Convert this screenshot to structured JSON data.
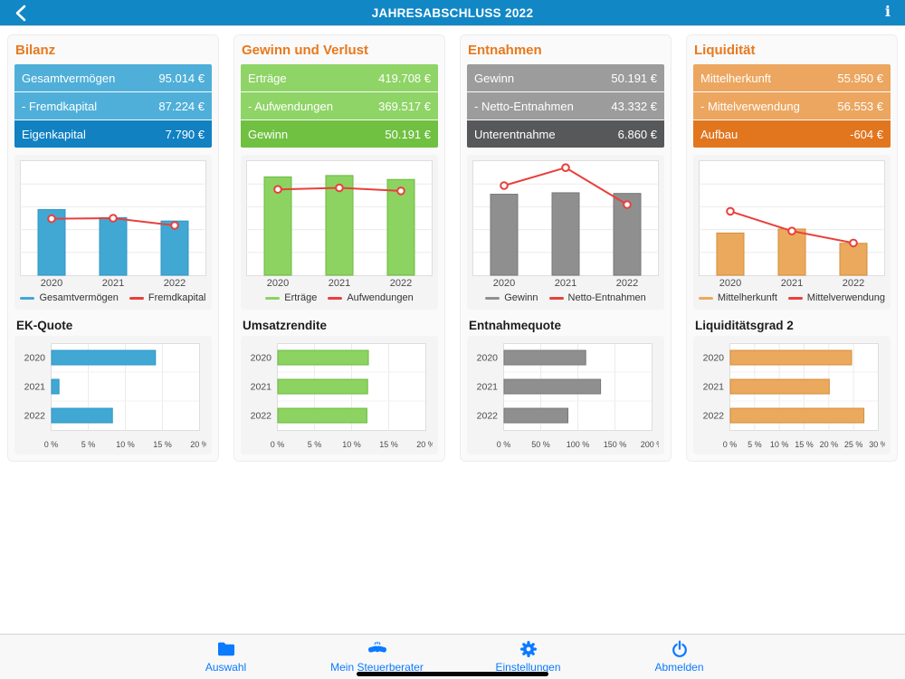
{
  "nav": {
    "title": "JAHRESABSCHLUSS 2022",
    "info_glyph": "i"
  },
  "theme": {
    "navbar_blue": "#1187c5",
    "section_title_orange": "#e8791d",
    "tab_blue": "#0a7aff",
    "red_line": "#e8403c"
  },
  "columns": [
    {
      "title": "Bilanz",
      "rows": [
        {
          "label": "Gesamtvermögen",
          "value": "95.014 €",
          "tone": "light"
        },
        {
          "label": "- Fremdkapital",
          "value": "87.224 €",
          "tone": "light"
        },
        {
          "label": "Eigenkapital",
          "value": "7.790 €",
          "tone": "dark"
        }
      ],
      "colors": {
        "row_light": "#4fafd9",
        "row_dark": "#1181c2",
        "bar": "#41a8d4",
        "bar_border": "#2e96c3",
        "line": "#e8403c"
      },
      "combo_chart": {
        "type": "bar+line",
        "categories": [
          "2020",
          "2021",
          "2022"
        ],
        "series": [
          {
            "name": "Gesamtvermögen",
            "type": "bar",
            "values": [
              115000,
              101000,
              95014
            ]
          },
          {
            "name": "Fremdkapital",
            "type": "line",
            "values": [
              99000,
              100000,
              87224
            ]
          }
        ],
        "ylim": [
          0,
          200000
        ],
        "grid": true,
        "legend_position": "bottom"
      },
      "ratio_chart": {
        "type": "bar",
        "title": "EK-Quote",
        "categories": [
          "2020",
          "2021",
          "2022"
        ],
        "values": [
          14,
          1,
          8.2
        ],
        "xlim": [
          0,
          20
        ],
        "ticks": [
          {
            "value": 0,
            "label": "0 %"
          },
          {
            "value": 5,
            "label": "5 %"
          },
          {
            "value": 10,
            "label": "10 %"
          },
          {
            "value": 15,
            "label": "15 %"
          },
          {
            "value": 20,
            "label": "20 %"
          }
        ]
      }
    },
    {
      "title": "Gewinn und Verlust",
      "rows": [
        {
          "label": "Erträge",
          "value": "419.708 €",
          "tone": "light"
        },
        {
          "label": "- Aufwendungen",
          "value": "369.517 €",
          "tone": "light"
        },
        {
          "label": "Gewinn",
          "value": "50.191 €",
          "tone": "dark"
        }
      ],
      "colors": {
        "row_light": "#8fd466",
        "row_dark": "#70c041",
        "bar": "#8cd361",
        "bar_border": "#6cba40",
        "line": "#e8403c"
      },
      "combo_chart": {
        "type": "bar+line",
        "categories": [
          "2020",
          "2021",
          "2022"
        ],
        "series": [
          {
            "name": "Erträge",
            "type": "bar",
            "values": [
              431000,
              437000,
              419708
            ]
          },
          {
            "name": "Aufwendungen",
            "type": "line",
            "values": [
              376000,
              383000,
              369517
            ]
          }
        ],
        "ylim": [
          0,
          500000
        ],
        "grid": true,
        "legend_position": "bottom"
      },
      "ratio_chart": {
        "type": "bar",
        "title": "Umsatzrendite",
        "categories": [
          "2020",
          "2021",
          "2022"
        ],
        "values": [
          12.2,
          12.1,
          12.0
        ],
        "xlim": [
          0,
          20
        ],
        "ticks": [
          {
            "value": 0,
            "label": "0 %"
          },
          {
            "value": 5,
            "label": "5 %"
          },
          {
            "value": 10,
            "label": "10 %"
          },
          {
            "value": 15,
            "label": "15 %"
          },
          {
            "value": 20,
            "label": "20 %"
          }
        ]
      }
    },
    {
      "title": "Entnahmen",
      "rows": [
        {
          "label": "Gewinn",
          "value": "50.191 €",
          "tone": "light"
        },
        {
          "label": "- Netto-Entnahmen",
          "value": "43.332 €",
          "tone": "light"
        },
        {
          "label": "Unterentnahme",
          "value": "6.860 €",
          "tone": "dark"
        }
      ],
      "colors": {
        "row_light": "#9c9c9c",
        "row_dark": "#57585a",
        "bar": "#8f8f8f",
        "bar_border": "#787878",
        "line": "#e8403c"
      },
      "combo_chart": {
        "type": "bar+line",
        "categories": [
          "2020",
          "2021",
          "2022"
        ],
        "series": [
          {
            "name": "Gewinn",
            "type": "bar",
            "values": [
              49700,
              50600,
              50191
            ]
          },
          {
            "name": "Netto-Entnahmen",
            "type": "line",
            "values": [
              55000,
              66000,
              43332
            ]
          }
        ],
        "ylim": [
          0,
          70000
        ],
        "grid": true,
        "legend_position": "bottom"
      },
      "ratio_chart": {
        "type": "bar",
        "title": "Entnahmequote",
        "categories": [
          "2020",
          "2021",
          "2022"
        ],
        "values": [
          110,
          130,
          86
        ],
        "xlim": [
          0,
          200
        ],
        "ticks": [
          {
            "value": 0,
            "label": "0 %"
          },
          {
            "value": 50,
            "label": "50 %"
          },
          {
            "value": 100,
            "label": "100 %"
          },
          {
            "value": 150,
            "label": "150 %"
          },
          {
            "value": 200,
            "label": "200 %"
          }
        ]
      }
    },
    {
      "title": "Liquidität",
      "rows": [
        {
          "label": "Mittelherkunft",
          "value": "55.950 €",
          "tone": "light"
        },
        {
          "label": "- Mittelverwendung",
          "value": "56.553 €",
          "tone": "light"
        },
        {
          "label": "Aufbau",
          "value": "-604 €",
          "tone": "dark"
        }
      ],
      "colors": {
        "row_light": "#eca65f",
        "row_dark": "#e1761f",
        "bar": "#eba95d",
        "bar_border": "#d38d3c",
        "line": "#e8403c"
      },
      "combo_chart": {
        "type": "bar+line",
        "categories": [
          "2020",
          "2021",
          "2022"
        ],
        "series": [
          {
            "name": "Mittelherkunft",
            "type": "bar",
            "values": [
              74000,
              81000,
              55950
            ]
          },
          {
            "name": "Mittelverwendung",
            "type": "line",
            "values": [
              112000,
              77500,
              56553
            ]
          }
        ],
        "ylim": [
          0,
          200000
        ],
        "grid": true,
        "legend_position": "bottom"
      },
      "ratio_chart": {
        "type": "bar",
        "title": "Liquiditätsgrad 2",
        "categories": [
          "2020",
          "2021",
          "2022"
        ],
        "values": [
          24.5,
          20,
          27
        ],
        "xlim": [
          0,
          30
        ],
        "ticks": [
          {
            "value": 0,
            "label": "0 %"
          },
          {
            "value": 5,
            "label": "5 %"
          },
          {
            "value": 10,
            "label": "10 %"
          },
          {
            "value": 15,
            "label": "15 %"
          },
          {
            "value": 20,
            "label": "20 %"
          },
          {
            "value": 25,
            "label": "25 %"
          },
          {
            "value": 30,
            "label": "30 %"
          }
        ]
      }
    }
  ],
  "tabbar": {
    "items": [
      {
        "label": "Auswahl",
        "icon": "folder-icon"
      },
      {
        "label": "Mein Steuerberater",
        "icon": "handshake-icon"
      },
      {
        "label": "Einstellungen",
        "icon": "gear-icon"
      },
      {
        "label": "Abmelden",
        "icon": "power-icon"
      }
    ]
  }
}
